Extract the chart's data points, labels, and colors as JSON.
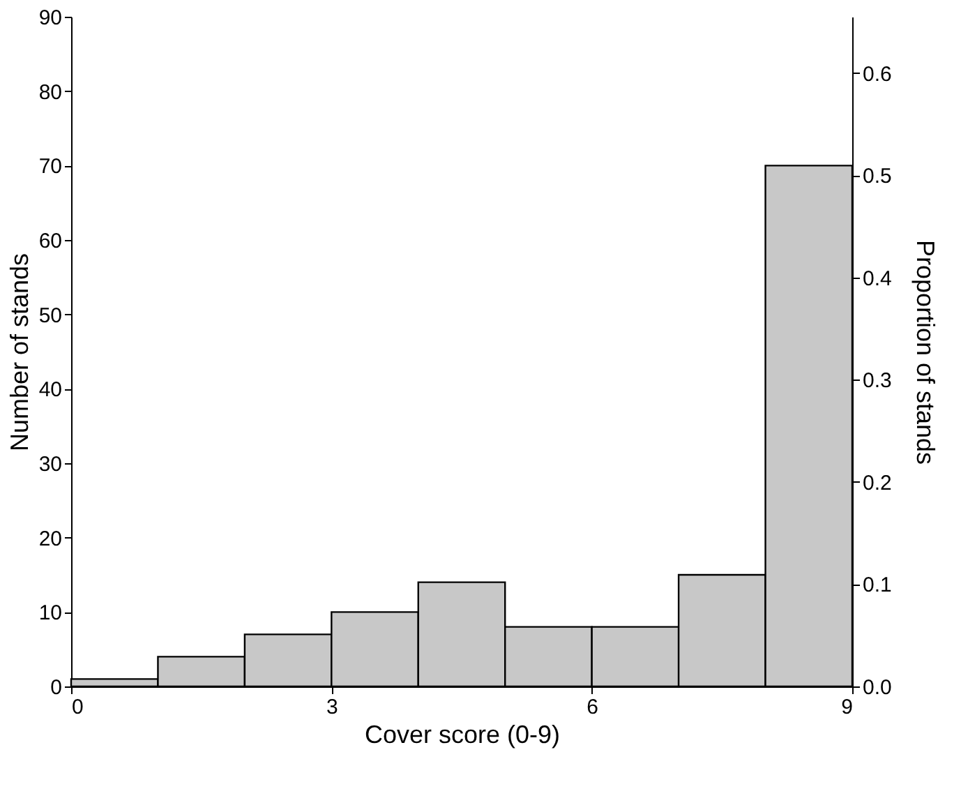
{
  "chart_data": {
    "type": "histogram",
    "xlabel": "Cover score (0-9)",
    "ylabel": "Number of stands",
    "y2label": "Proportion of stands",
    "bins": [
      0,
      1,
      2,
      3,
      4,
      5,
      6,
      7,
      8,
      9
    ],
    "values": [
      1,
      4,
      7,
      10,
      14,
      8,
      8,
      15,
      70
    ],
    "color": "#c8c8c8",
    "xlim": [
      0,
      9
    ],
    "xticks": [
      0,
      3,
      6,
      9
    ],
    "ylim": [
      0,
      90
    ],
    "yticks": [
      0,
      10,
      20,
      30,
      40,
      50,
      60,
      70,
      80,
      90
    ],
    "y2lim": [
      0,
      0.655
    ],
    "y2ticks": [
      {
        "value": 0,
        "label": "0.0"
      },
      0.1,
      0.2,
      0.3,
      0.4,
      0.5,
      0.6
    ],
    "grid": false
  }
}
